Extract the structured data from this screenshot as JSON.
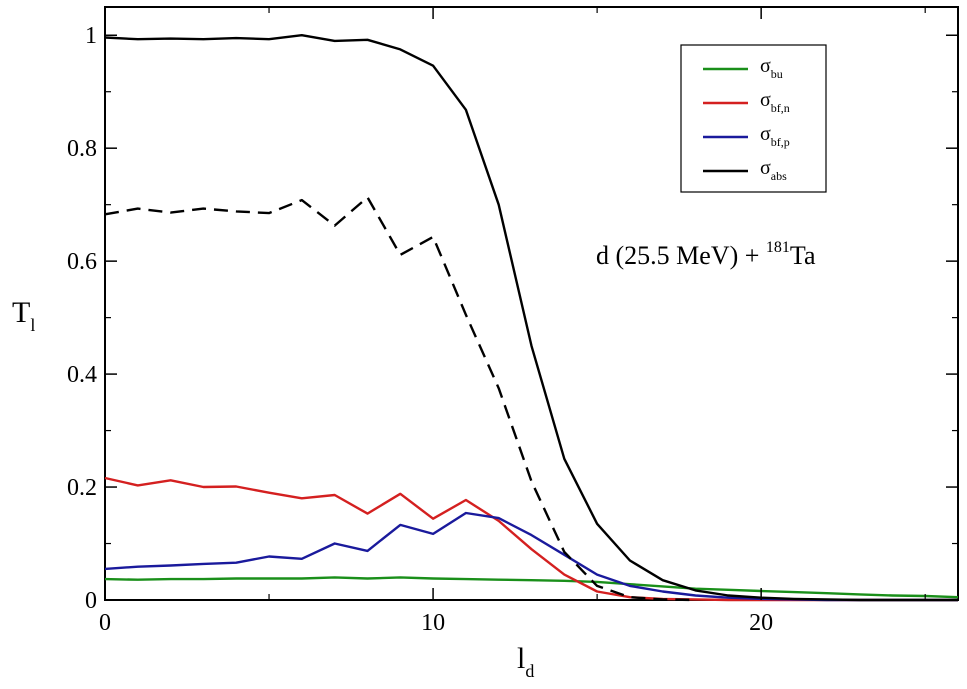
{
  "chart_data": {
    "type": "line",
    "title": "",
    "xlabel": {
      "base": "l",
      "sub": "d"
    },
    "ylabel": {
      "base": "T",
      "sub": "l"
    },
    "xlim": [
      0,
      26
    ],
    "ylim": [
      0,
      1.05
    ],
    "xticks": [
      0,
      10,
      20
    ],
    "xtick_labels": [
      "0",
      "10",
      "20"
    ],
    "yticks": [
      0,
      0.2,
      0.4,
      0.6,
      0.8,
      1
    ],
    "ytick_labels": [
      "0",
      "0.2",
      "0.4",
      "0.6",
      "0.8",
      "1"
    ],
    "grid": false,
    "legend_position": "top-right",
    "annotation": {
      "main": "d (25.5 MeV) + ",
      "sup": "181",
      "tail": "Ta"
    },
    "series": [
      {
        "name": "σbu",
        "legend_base": "σ",
        "legend_sub": "bu",
        "color": "#1a8f1a",
        "dash": "solid",
        "in_legend": true,
        "points": [
          [
            0,
            0.037
          ],
          [
            1,
            0.036
          ],
          [
            2,
            0.037
          ],
          [
            3,
            0.037
          ],
          [
            4,
            0.038
          ],
          [
            5,
            0.038
          ],
          [
            6,
            0.038
          ],
          [
            7,
            0.04
          ],
          [
            8,
            0.038
          ],
          [
            9,
            0.04
          ],
          [
            10,
            0.038
          ],
          [
            11,
            0.037
          ],
          [
            12,
            0.036
          ],
          [
            13,
            0.035
          ],
          [
            14,
            0.034
          ],
          [
            15,
            0.032
          ],
          [
            16,
            0.028
          ],
          [
            17,
            0.024
          ],
          [
            18,
            0.02
          ],
          [
            19,
            0.018
          ],
          [
            20,
            0.016
          ],
          [
            21,
            0.014
          ],
          [
            22,
            0.012
          ],
          [
            23,
            0.01
          ],
          [
            24,
            0.008
          ],
          [
            25,
            0.007
          ],
          [
            26,
            0.005
          ]
        ]
      },
      {
        "name": "σbf,n",
        "legend_base": "σ",
        "legend_sub": "bf,n",
        "color": "#d42020",
        "dash": "solid",
        "in_legend": true,
        "points": [
          [
            0,
            0.216
          ],
          [
            1,
            0.203
          ],
          [
            2,
            0.212
          ],
          [
            3,
            0.2
          ],
          [
            4,
            0.201
          ],
          [
            5,
            0.19
          ],
          [
            6,
            0.18
          ],
          [
            7,
            0.186
          ],
          [
            8,
            0.153
          ],
          [
            9,
            0.188
          ],
          [
            10,
            0.144
          ],
          [
            11,
            0.177
          ],
          [
            12,
            0.14
          ],
          [
            13,
            0.09
          ],
          [
            14,
            0.045
          ],
          [
            15,
            0.015
          ],
          [
            16,
            0.005
          ],
          [
            17,
            0.002
          ],
          [
            18,
            0.001
          ],
          [
            19,
            0.0
          ],
          [
            20,
            0.0
          ],
          [
            21,
            0.0
          ],
          [
            22,
            0.0
          ],
          [
            23,
            0.0
          ],
          [
            24,
            0.0
          ],
          [
            25,
            0.0
          ],
          [
            26,
            0.0
          ]
        ]
      },
      {
        "name": "σbf,p",
        "legend_base": "σ",
        "legend_sub": "bf,p",
        "color": "#1a1a9c",
        "dash": "solid",
        "in_legend": true,
        "points": [
          [
            0,
            0.055
          ],
          [
            1,
            0.059
          ],
          [
            2,
            0.061
          ],
          [
            3,
            0.064
          ],
          [
            4,
            0.066
          ],
          [
            5,
            0.077
          ],
          [
            6,
            0.073
          ],
          [
            7,
            0.1
          ],
          [
            8,
            0.087
          ],
          [
            9,
            0.133
          ],
          [
            10,
            0.117
          ],
          [
            11,
            0.154
          ],
          [
            12,
            0.145
          ],
          [
            13,
            0.115
          ],
          [
            14,
            0.08
          ],
          [
            15,
            0.045
          ],
          [
            16,
            0.025
          ],
          [
            17,
            0.015
          ],
          [
            18,
            0.008
          ],
          [
            19,
            0.004
          ],
          [
            20,
            0.002
          ],
          [
            21,
            0.001
          ],
          [
            22,
            0.0
          ],
          [
            23,
            0.0
          ],
          [
            24,
            0.0
          ],
          [
            25,
            0.0
          ],
          [
            26,
            0.0
          ]
        ]
      },
      {
        "name": "σabs",
        "legend_base": "σ",
        "legend_sub": "abs",
        "color": "#000000",
        "dash": "solid",
        "in_legend": true,
        "points": [
          [
            0,
            0.996
          ],
          [
            1,
            0.993
          ],
          [
            2,
            0.994
          ],
          [
            3,
            0.993
          ],
          [
            4,
            0.995
          ],
          [
            5,
            0.993
          ],
          [
            6,
            1.0
          ],
          [
            7,
            0.99
          ],
          [
            8,
            0.992
          ],
          [
            9,
            0.975
          ],
          [
            10,
            0.946
          ],
          [
            11,
            0.868
          ],
          [
            12,
            0.7
          ],
          [
            13,
            0.45
          ],
          [
            14,
            0.25
          ],
          [
            15,
            0.135
          ],
          [
            16,
            0.07
          ],
          [
            17,
            0.035
          ],
          [
            18,
            0.017
          ],
          [
            19,
            0.008
          ],
          [
            20,
            0.004
          ],
          [
            21,
            0.002
          ],
          [
            22,
            0.001
          ],
          [
            23,
            0.0
          ],
          [
            24,
            0.0
          ],
          [
            25,
            0.0
          ],
          [
            26,
            0.0
          ]
        ]
      },
      {
        "name": "dashed",
        "color": "#000000",
        "dash": "dashed",
        "in_legend": false,
        "points": [
          [
            0,
            0.683
          ],
          [
            1,
            0.693
          ],
          [
            2,
            0.686
          ],
          [
            3,
            0.693
          ],
          [
            4,
            0.688
          ],
          [
            5,
            0.685
          ],
          [
            6,
            0.708
          ],
          [
            7,
            0.663
          ],
          [
            8,
            0.713
          ],
          [
            9,
            0.611
          ],
          [
            10,
            0.643
          ],
          [
            11,
            0.505
          ],
          [
            12,
            0.375
          ],
          [
            13,
            0.21
          ],
          [
            14,
            0.085
          ],
          [
            15,
            0.025
          ],
          [
            16,
            0.005
          ],
          [
            17,
            0.001
          ],
          [
            18,
            0.0
          ]
        ]
      }
    ]
  }
}
